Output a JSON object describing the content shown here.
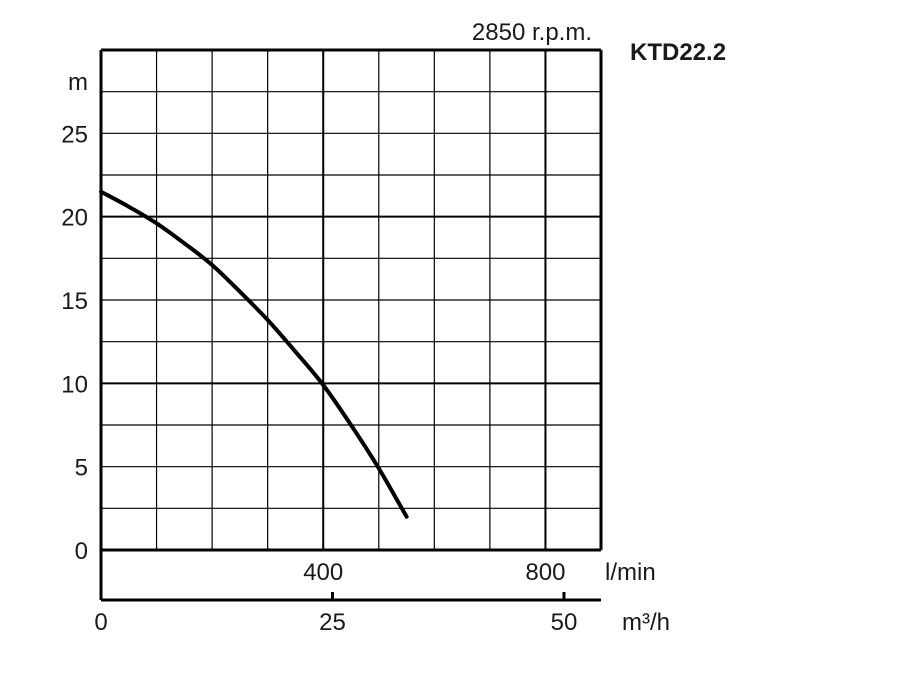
{
  "chart_data": {
    "type": "line",
    "title": "2850 r.p.m.",
    "model": "KTD22.2",
    "ylabel": "m",
    "xlabel_primary": "l/min",
    "xlabel_secondary": "m³/h",
    "x_unit": "l/min",
    "xlim": [
      0,
      900
    ],
    "ylim": [
      0,
      30
    ],
    "x_ticks_lmin": [
      {
        "value": 400,
        "label": "400"
      },
      {
        "value": 800,
        "label": "800"
      }
    ],
    "x_ticks_m3h": [
      {
        "value": 0,
        "label": "0"
      },
      {
        "value": 25,
        "label": "25"
      },
      {
        "value": 50,
        "label": "50"
      }
    ],
    "y_ticks": [
      {
        "value": 0,
        "label": "0"
      },
      {
        "value": 5,
        "label": "5"
      },
      {
        "value": 10,
        "label": "10"
      },
      {
        "value": 15,
        "label": "15"
      },
      {
        "value": 20,
        "label": "20"
      },
      {
        "value": 25,
        "label": "25"
      }
    ],
    "grid": true,
    "series": [
      {
        "x": [
          0,
          50,
          100,
          150,
          200,
          250,
          300,
          350,
          400,
          450,
          500,
          550
        ],
        "y": [
          21.5,
          20.6,
          19.6,
          18.4,
          17.1,
          15.5,
          13.8,
          11.9,
          9.9,
          7.5,
          4.9,
          2.0
        ]
      }
    ]
  }
}
